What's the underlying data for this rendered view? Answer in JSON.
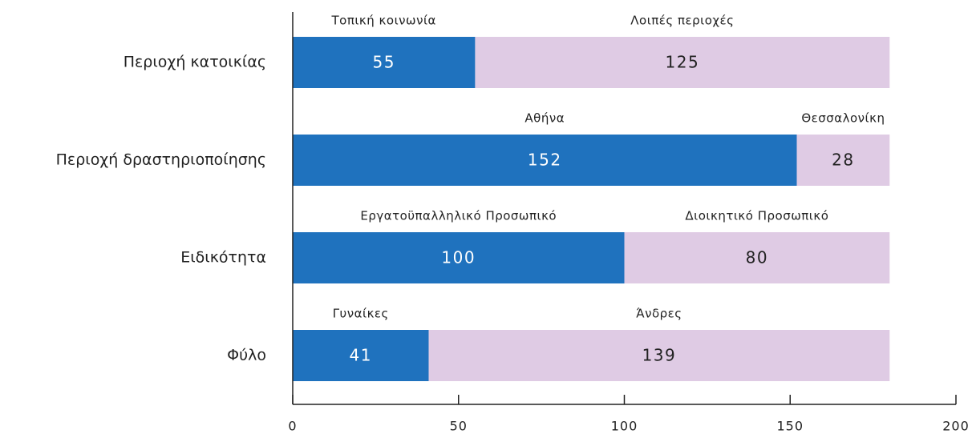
{
  "chart_data": {
    "type": "stacked-barh",
    "categories": [
      "Περιοχή κατοικίας",
      "Περιοχή δραστηριοποίησης",
      "Ειδικότητα",
      "Φύλο"
    ],
    "series": [
      {
        "color": "#1f72be",
        "label_color": "#ffffff",
        "values": [
          55,
          152,
          100,
          41
        ],
        "labels": [
          "Τοπική κοινωνία",
          "Αθήνα",
          "Εργατοϋπαλληλικό Προσωπικό",
          "Γυναίκες"
        ]
      },
      {
        "color": "#dfcbe4",
        "label_color": "#222222",
        "values": [
          125,
          28,
          80,
          139
        ],
        "labels": [
          "Λοιπές περιοχές",
          "Θεσσαλονίκη",
          "Διοικητικό Προσωπικό",
          "Άνδρες"
        ]
      }
    ],
    "xlim": [
      0,
      200
    ],
    "xticks": [
      0,
      50,
      100,
      150,
      200
    ]
  }
}
